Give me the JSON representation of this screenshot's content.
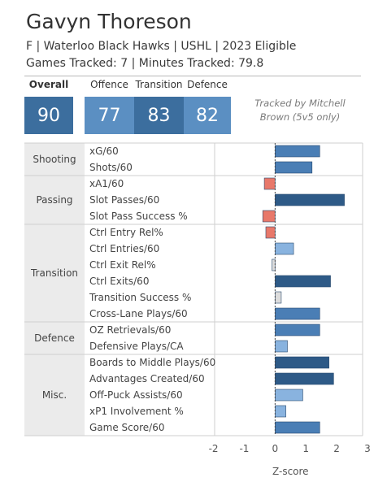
{
  "header": {
    "player_name": "Gavyn Thoreson",
    "subtitle": "F | Waterloo Black Hawks | USHL | 2023 Eligible",
    "tracking_info": "Games Tracked: 7 | Minutes Tracked: 79.8"
  },
  "scores": [
    {
      "label": "Overall",
      "value": "90",
      "color": "#3c6e9e"
    },
    {
      "label": "Offence",
      "value": "77",
      "color": "#5b8fc2"
    },
    {
      "label": "Transition",
      "value": "83",
      "color": "#3c6e9e"
    },
    {
      "label": "Defence",
      "value": "82",
      "color": "#5b8fc2"
    }
  ],
  "tracked_by": "Tracked by Mitchell Brown (5v5 only)",
  "colors": {
    "very_positive": "#2e5a87",
    "positive": "#4a7eb5",
    "slightly_positive": "#89b3df",
    "neutral": "#dcdcdc",
    "slightly_negative": "#f2b4a6",
    "negative": "#e8786a",
    "zero_line": "#444444",
    "category_band": "#ebebeb"
  },
  "chart_data": {
    "type": "bar",
    "orientation": "horizontal",
    "xlabel": "Z-score",
    "xlim": [
      -2.2,
      3
    ],
    "xticks": [
      -2,
      -1,
      0,
      1,
      2,
      3
    ],
    "groups": [
      {
        "name": "Shooting",
        "metrics": [
          {
            "label": "xG/60",
            "value": 1.45
          },
          {
            "label": "Shots/60",
            "value": 1.2
          }
        ]
      },
      {
        "name": "Passing",
        "metrics": [
          {
            "label": "xA1/60",
            "value": -0.35
          },
          {
            "label": "Slot Passes/60",
            "value": 2.25
          },
          {
            "label": "Slot Pass Success %",
            "value": -0.4
          }
        ]
      },
      {
        "name": "Transition",
        "metrics": [
          {
            "label": "Ctrl Entry Rel%",
            "value": -0.3
          },
          {
            "label": "Ctrl Entries/60",
            "value": 0.6
          },
          {
            "label": "Ctrl Exit Rel%",
            "value": -0.1
          },
          {
            "label": "Ctrl Exits/60",
            "value": 1.8
          },
          {
            "label": "Transition Success %",
            "value": 0.2
          },
          {
            "label": "Cross-Lane Plays/60",
            "value": 1.45
          }
        ]
      },
      {
        "name": "Defence",
        "metrics": [
          {
            "label": "OZ Retrievals/60",
            "value": 1.45
          },
          {
            "label": "Defensive Plays/CA",
            "value": 0.4
          }
        ]
      },
      {
        "name": "Misc.",
        "metrics": [
          {
            "label": "Boards to Middle Plays/60",
            "value": 1.75
          },
          {
            "label": "Advantages Created/60",
            "value": 1.9
          },
          {
            "label": "Off-Puck Assists/60",
            "value": 0.9
          },
          {
            "label": "xP1 Involvement %",
            "value": 0.35
          },
          {
            "label": "Game Score/60",
            "value": 1.45
          }
        ]
      }
    ]
  }
}
